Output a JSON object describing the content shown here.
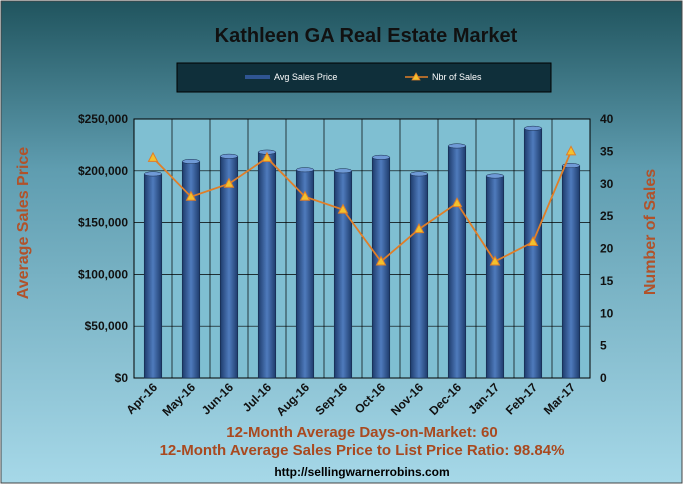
{
  "chart_data": {
    "type": "bar",
    "title": "Kathleen GA Real Estate Market",
    "categories": [
      "Apr-16",
      "May-16",
      "Jun-16",
      "Jul-16",
      "Aug-16",
      "Sep-16",
      "Oct-16",
      "Nov-16",
      "Dec-16",
      "Jan-17",
      "Feb-17",
      "Mar-17"
    ],
    "series": [
      {
        "name": "Avg Sales Price",
        "type": "bar",
        "axis": "left",
        "values": [
          197000,
          209000,
          214000,
          218000,
          201000,
          200000,
          213000,
          197000,
          224000,
          195000,
          241000,
          205000
        ]
      },
      {
        "name": "Nbr of Sales",
        "type": "line",
        "axis": "right",
        "values": [
          34,
          28,
          30,
          34,
          28,
          26,
          18,
          23,
          27,
          18,
          21,
          35
        ]
      }
    ],
    "ylabel": "Average Sales Price",
    "y2label": "Number of Sales",
    "ylim": [
      0,
      250000
    ],
    "y2lim": [
      0,
      40
    ],
    "yticks": [
      "$0",
      "$50,000",
      "$100,000",
      "$150,000",
      "$200,000",
      "$250,000"
    ],
    "y2ticks": [
      "0",
      "5",
      "10",
      "15",
      "20",
      "25",
      "30",
      "35",
      "40"
    ],
    "grid": true,
    "legend": "top-center",
    "colors": {
      "bar": "#2f5592",
      "line": "#e07e28",
      "marker": "#f2c12e",
      "axis_text": "#b1522a"
    }
  },
  "footer": {
    "line1": "12-Month Average Days-on-Market: 60",
    "line2": "12-Month Average Sales Price to List Price Ratio: 98.84%",
    "url": "http://sellingwarnerrobins.com"
  }
}
